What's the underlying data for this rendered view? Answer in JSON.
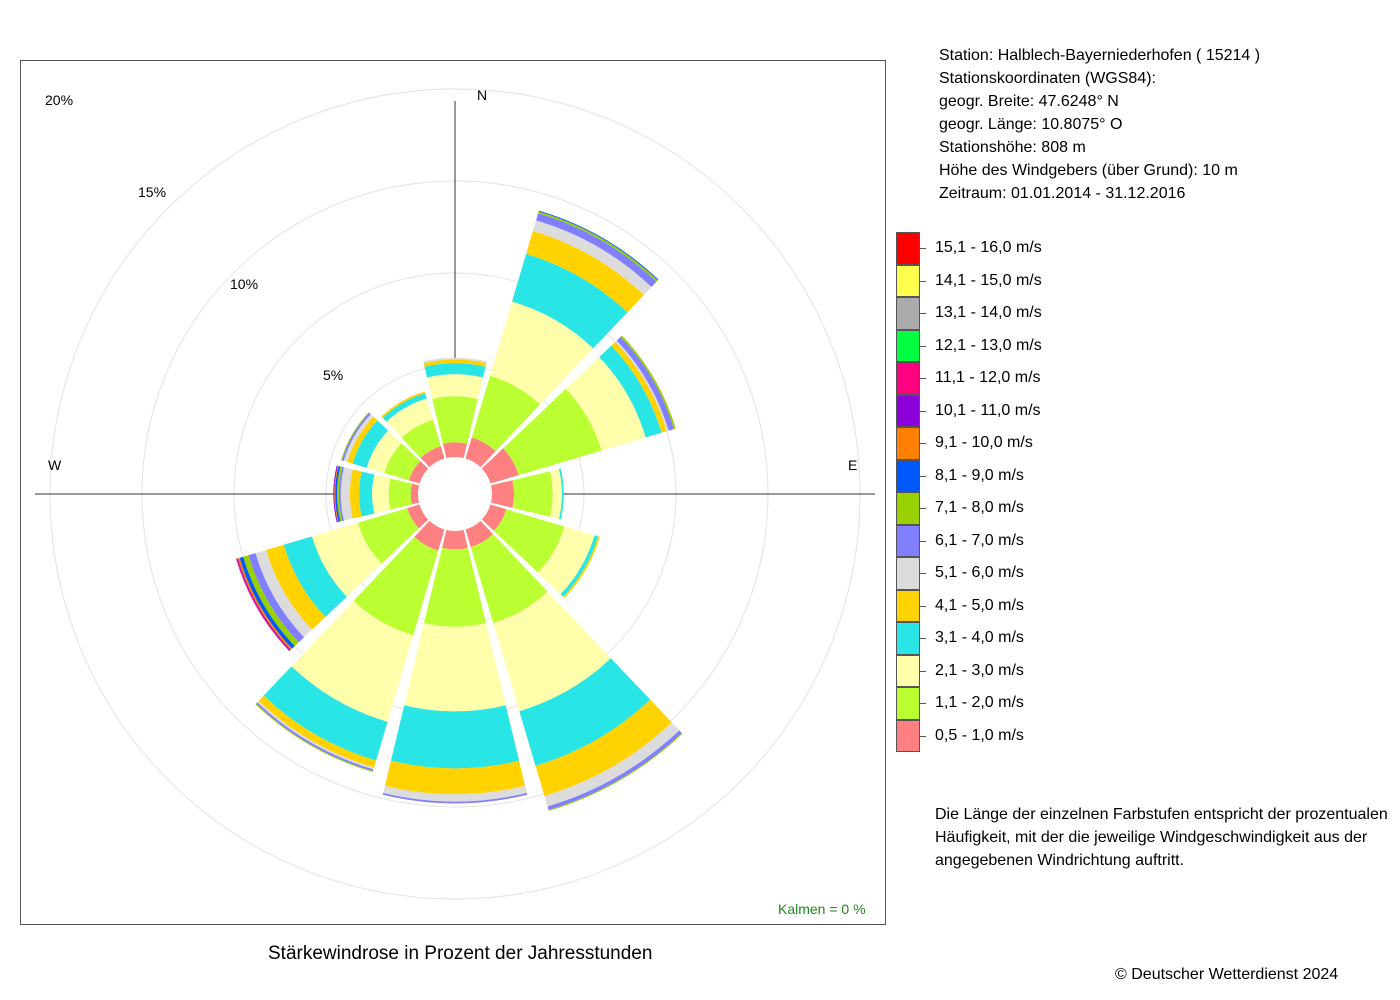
{
  "station": {
    "line1": "Station:  Halblech-Bayerniederhofen  ( 15214 )",
    "line2": "Stationskoordinaten (WGS84):",
    "line3": "geogr. Breite: 47.6248° N",
    "line4": "geogr. Länge: 10.8075° O",
    "line5": "Stationshöhe: 808 m",
    "line6": "Höhe des Windgebers (über Grund): 10 m",
    "line7": "Zeitraum: 01.01.2014 - 31.12.2016"
  },
  "legend": [
    {
      "label": "15,1 - 16,0 m/s",
      "color": "#ff0000"
    },
    {
      "label": "14,1 - 15,0 m/s",
      "color": "#ffff4d"
    },
    {
      "label": "13,1 - 14,0 m/s",
      "color": "#aaaaaa"
    },
    {
      "label": "12,1 - 13,0 m/s",
      "color": "#00ff40"
    },
    {
      "label": "11,1 - 12,0 m/s",
      "color": "#ff007f"
    },
    {
      "label": "10,1 - 11,0 m/s",
      "color": "#8c00d9"
    },
    {
      "label": "9,1 - 10,0 m/s",
      "color": "#ff8000"
    },
    {
      "label": "8,1 - 9,0 m/s",
      "color": "#0059ff"
    },
    {
      "label": "7,1 - 8,0 m/s",
      "color": "#99d100"
    },
    {
      "label": "6,1 - 7,0 m/s",
      "color": "#7f7fff"
    },
    {
      "label": "5,1 - 6,0 m/s",
      "color": "#dcdcdc"
    },
    {
      "label": "4,1 - 5,0 m/s",
      "color": "#ffd200"
    },
    {
      "label": "3,1 - 4,0 m/s",
      "color": "#29e5e5"
    },
    {
      "label": "2,1 - 3,0 m/s",
      "color": "#ffffab"
    },
    {
      "label": "1,1 - 2,0 m/s",
      "color": "#bbff33"
    },
    {
      "label": "0,5 - 1,0 m/s",
      "color": "#ff8080"
    }
  ],
  "note": "Die Länge der einzelnen Farbstufen entspricht der prozentualen Häufigkeit, mit der die jeweilige Windgeschwindigkeit aus der angegebenen Windrichtung auftritt.",
  "copyright": "© Deutscher Wetterdienst  2024",
  "title": "Stärkewindrose in Prozent der Jahresstunden",
  "kalmen": "Kalmen  =  0 %",
  "directions": {
    "n": "N",
    "e": "E",
    "w": "W"
  },
  "ring_labels": [
    "5%",
    "10%",
    "15%",
    "20%"
  ],
  "chart_data": {
    "type": "wind-rose",
    "title": "Stärkewindrose in Prozent der Jahresstunden",
    "unit": "%",
    "rlim": [
      0,
      20
    ],
    "ring_values": [
      5,
      10,
      15,
      20
    ],
    "sector_width_deg": 30,
    "calms_percent": 0,
    "speed_classes": [
      "0,5 - 1,0 m/s",
      "1,1 - 2,0 m/s",
      "2,1 - 3,0 m/s",
      "3,1 - 4,0 m/s",
      "4,1 - 5,0 m/s",
      "5,1 - 6,0 m/s",
      "6,1 - 7,0 m/s",
      "7,1 - 8,0 m/s",
      "8,1 - 9,0 m/s",
      "9,1 - 10,0 m/s",
      "10,1 - 11,0 m/s",
      "11,1 - 12,0 m/s",
      "12,1 - 13,0 m/s",
      "13,1 - 14,0 m/s",
      "14,1 - 15,0 m/s",
      "15,1 - 16,0 m/s"
    ],
    "series": [
      {
        "direction_deg": 0,
        "values": [
          0.8,
          2.5,
          1.2,
          0.6,
          0.2,
          0.1,
          0,
          0,
          0,
          0,
          0,
          0,
          0,
          0,
          0,
          0
        ]
      },
      {
        "direction_deg": 30,
        "values": [
          1.2,
          3.5,
          4.2,
          2.7,
          1.3,
          0.6,
          0.4,
          0.1,
          0.05,
          0,
          0,
          0,
          0,
          0,
          0,
          0
        ]
      },
      {
        "direction_deg": 60,
        "values": [
          1.6,
          4.7,
          2.5,
          0.9,
          0.3,
          0.1,
          0.3,
          0.1,
          0,
          0,
          0,
          0,
          0,
          0,
          0,
          0
        ]
      },
      {
        "direction_deg": 90,
        "values": [
          1.2,
          2.1,
          0.5,
          0.1,
          0,
          0,
          0,
          0,
          0,
          0,
          0,
          0,
          0,
          0,
          0,
          0
        ]
      },
      {
        "direction_deg": 120,
        "values": [
          0.9,
          3.3,
          1.7,
          0.2,
          0.1,
          0,
          0,
          0,
          0,
          0,
          0,
          0,
          0,
          0,
          0,
          0
        ]
      },
      {
        "direction_deg": 150,
        "values": [
          1.0,
          4.3,
          5.0,
          3.1,
          1.7,
          0.6,
          0.2,
          0.05,
          0,
          0,
          0,
          0,
          0,
          0,
          0,
          0
        ]
      },
      {
        "direction_deg": 180,
        "values": [
          1.0,
          4.2,
          4.6,
          3.1,
          1.4,
          0.4,
          0.1,
          0,
          0,
          0,
          0,
          0,
          0,
          0,
          0,
          0
        ]
      },
      {
        "direction_deg": 210,
        "values": [
          1.2,
          4.8,
          4.9,
          2.2,
          0.4,
          0.1,
          0.1,
          0.05,
          0,
          0,
          0,
          0,
          0,
          0,
          0,
          0
        ]
      },
      {
        "direction_deg": 240,
        "values": [
          0.7,
          2.8,
          2.6,
          1.6,
          1.0,
          0.6,
          0.4,
          0.3,
          0.2,
          0.1,
          0.05,
          0.05,
          0,
          0,
          0,
          0
        ]
      },
      {
        "direction_deg": 270,
        "values": [
          0.4,
          1.2,
          0.9,
          0.7,
          0.5,
          0.5,
          0.1,
          0.1,
          0.1,
          0.05,
          0.05,
          0,
          0,
          0,
          0,
          0
        ]
      },
      {
        "direction_deg": 300,
        "values": [
          0.6,
          1.4,
          1.0,
          0.8,
          0.3,
          0.2,
          0.1,
          0.05,
          0,
          0,
          0,
          0,
          0,
          0,
          0,
          0
        ]
      },
      {
        "direction_deg": 330,
        "values": [
          0.7,
          1.5,
          1.2,
          0.3,
          0.1,
          0,
          0,
          0,
          0,
          0,
          0,
          0,
          0,
          0,
          0,
          0
        ]
      }
    ]
  }
}
